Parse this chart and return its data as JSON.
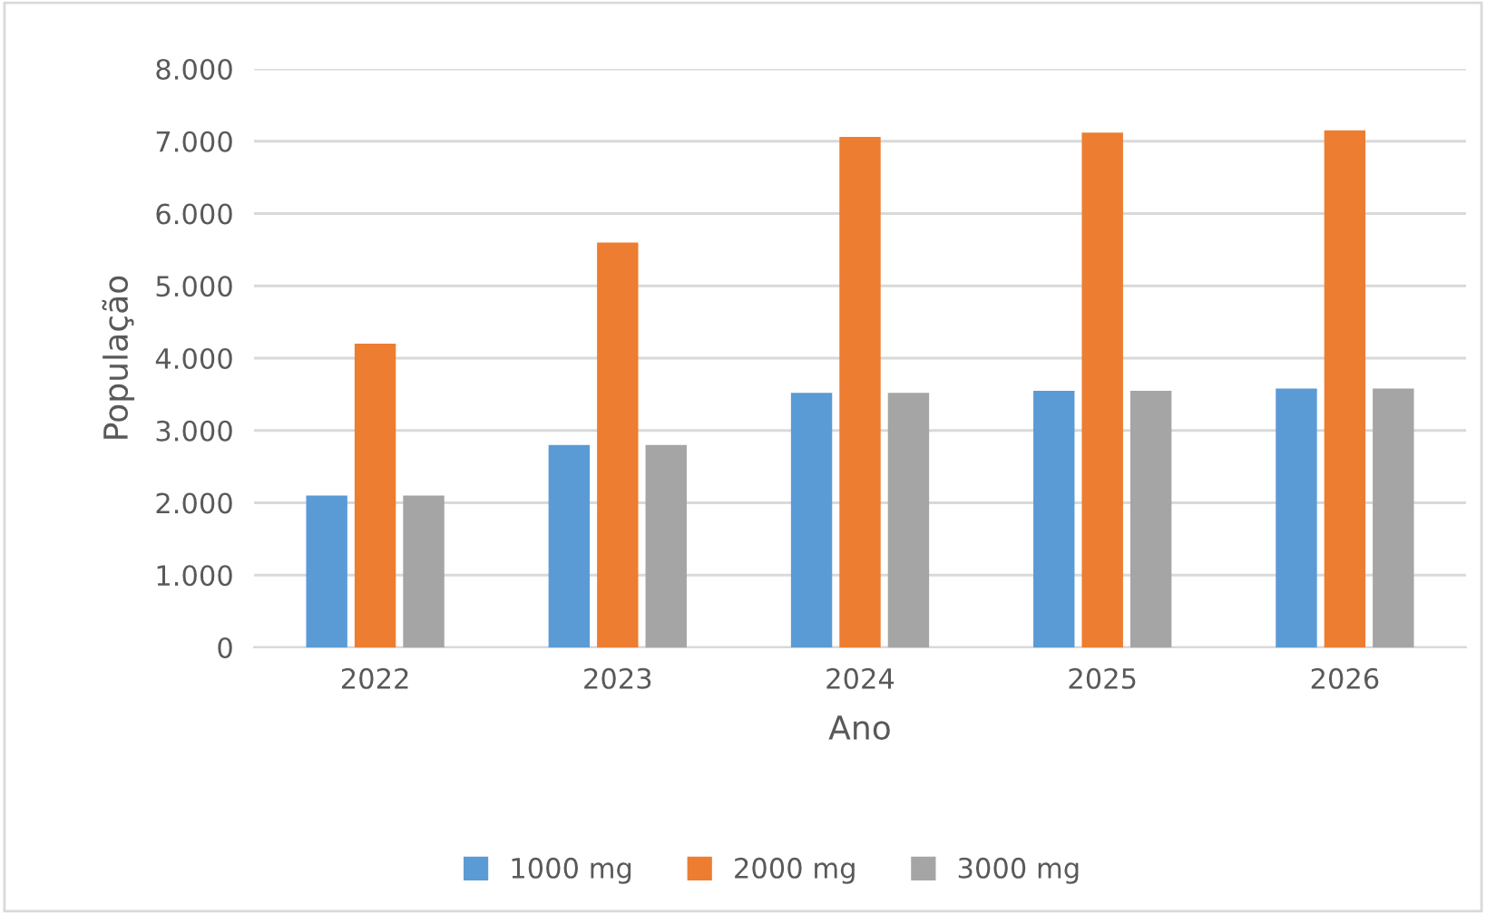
{
  "chart_data": {
    "type": "bar",
    "xlabel": "Ano",
    "ylabel": "População",
    "categories": [
      "2022",
      "2023",
      "2024",
      "2025",
      "2026"
    ],
    "series": [
      {
        "name": "1000 mg",
        "color": "#5b9bd5",
        "values": [
          2100,
          2800,
          3520,
          3550,
          3580
        ]
      },
      {
        "name": "2000 mg",
        "color": "#ed7d31",
        "values": [
          4200,
          5600,
          7060,
          7120,
          7150
        ]
      },
      {
        "name": "3000 mg",
        "color": "#a5a5a5",
        "values": [
          2100,
          2800,
          3520,
          3550,
          3580
        ]
      }
    ],
    "ylim": [
      0,
      8000
    ],
    "yticks": [
      0,
      {
        "value": 1000,
        "label": "1.000"
      },
      {
        "value": 2000,
        "label": "2.000"
      },
      {
        "value": 3000,
        "label": "3.000"
      },
      {
        "value": 4000,
        "label": "4.000"
      },
      {
        "value": 5000,
        "label": "5.000"
      },
      {
        "value": 6000,
        "label": "6.000"
      },
      {
        "value": 7000,
        "label": "7.000"
      },
      {
        "value": 8000,
        "label": "8.000"
      }
    ],
    "grid": "y",
    "legend": "bottom"
  }
}
